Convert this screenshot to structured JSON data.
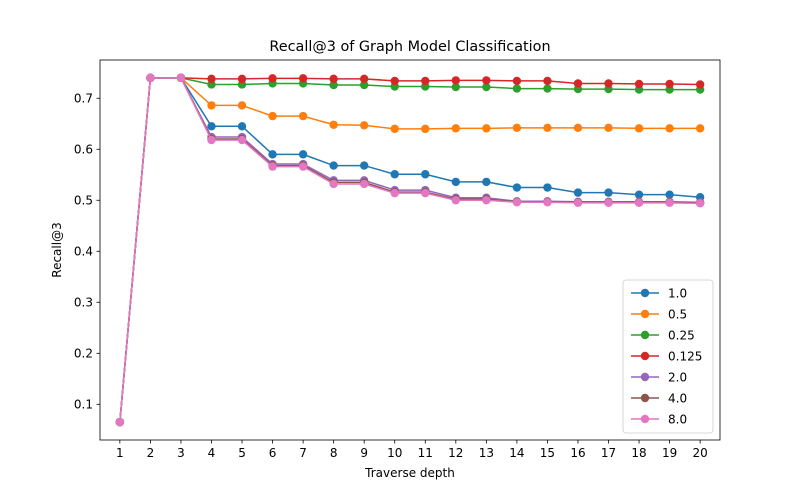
{
  "chart_data": {
    "type": "line",
    "title": "Recall@3 of Graph Model Classification",
    "xlabel": "Traverse depth",
    "ylabel": "Recall@3",
    "x": [
      1,
      2,
      3,
      4,
      5,
      6,
      7,
      8,
      9,
      10,
      11,
      12,
      13,
      14,
      15,
      16,
      17,
      18,
      19,
      20
    ],
    "xlim": [
      0.35,
      20.65
    ],
    "ylim": [
      0.03,
      0.775
    ],
    "yticks": [
      0.1,
      0.2,
      0.3,
      0.4,
      0.5,
      0.6,
      0.7
    ],
    "yticks_labels": [
      "0.1",
      "0.2",
      "0.3",
      "0.4",
      "0.5",
      "0.6",
      "0.7"
    ],
    "grid": false,
    "legend_position": "lower-right",
    "series": [
      {
        "name": "1.0",
        "color": "#1f77b4",
        "values": [
          0.065,
          0.74,
          0.74,
          0.645,
          0.645,
          0.59,
          0.59,
          0.568,
          0.568,
          0.551,
          0.551,
          0.536,
          0.536,
          0.525,
          0.525,
          0.515,
          0.515,
          0.511,
          0.511,
          0.506
        ]
      },
      {
        "name": "0.5",
        "color": "#ff7f0e",
        "values": [
          0.065,
          0.74,
          0.74,
          0.686,
          0.686,
          0.665,
          0.665,
          0.648,
          0.647,
          0.64,
          0.64,
          0.641,
          0.641,
          0.642,
          0.642,
          0.642,
          0.642,
          0.641,
          0.641,
          0.641
        ]
      },
      {
        "name": "0.25",
        "color": "#2ca02c",
        "values": [
          0.065,
          0.74,
          0.74,
          0.727,
          0.727,
          0.729,
          0.729,
          0.726,
          0.726,
          0.723,
          0.723,
          0.722,
          0.722,
          0.719,
          0.719,
          0.718,
          0.718,
          0.717,
          0.717,
          0.717
        ]
      },
      {
        "name": "0.125",
        "color": "#d62728",
        "values": [
          0.065,
          0.74,
          0.74,
          0.738,
          0.738,
          0.739,
          0.739,
          0.738,
          0.738,
          0.734,
          0.734,
          0.735,
          0.735,
          0.734,
          0.734,
          0.729,
          0.729,
          0.728,
          0.728,
          0.727
        ]
      },
      {
        "name": "2.0",
        "color": "#9467bd",
        "values": [
          0.065,
          0.74,
          0.74,
          0.624,
          0.624,
          0.571,
          0.571,
          0.539,
          0.539,
          0.52,
          0.52,
          0.505,
          0.505,
          0.498,
          0.498,
          0.497,
          0.497,
          0.497,
          0.497,
          0.496
        ]
      },
      {
        "name": "4.0",
        "color": "#8c564b",
        "values": [
          0.065,
          0.74,
          0.74,
          0.62,
          0.62,
          0.568,
          0.568,
          0.535,
          0.535,
          0.516,
          0.516,
          0.502,
          0.502,
          0.497,
          0.497,
          0.496,
          0.496,
          0.496,
          0.496,
          0.495
        ]
      },
      {
        "name": "8.0",
        "color": "#e377c2",
        "values": [
          0.065,
          0.74,
          0.74,
          0.618,
          0.618,
          0.566,
          0.566,
          0.532,
          0.532,
          0.514,
          0.514,
          0.5,
          0.5,
          0.496,
          0.496,
          0.495,
          0.495,
          0.495,
          0.495,
          0.494
        ]
      }
    ]
  }
}
